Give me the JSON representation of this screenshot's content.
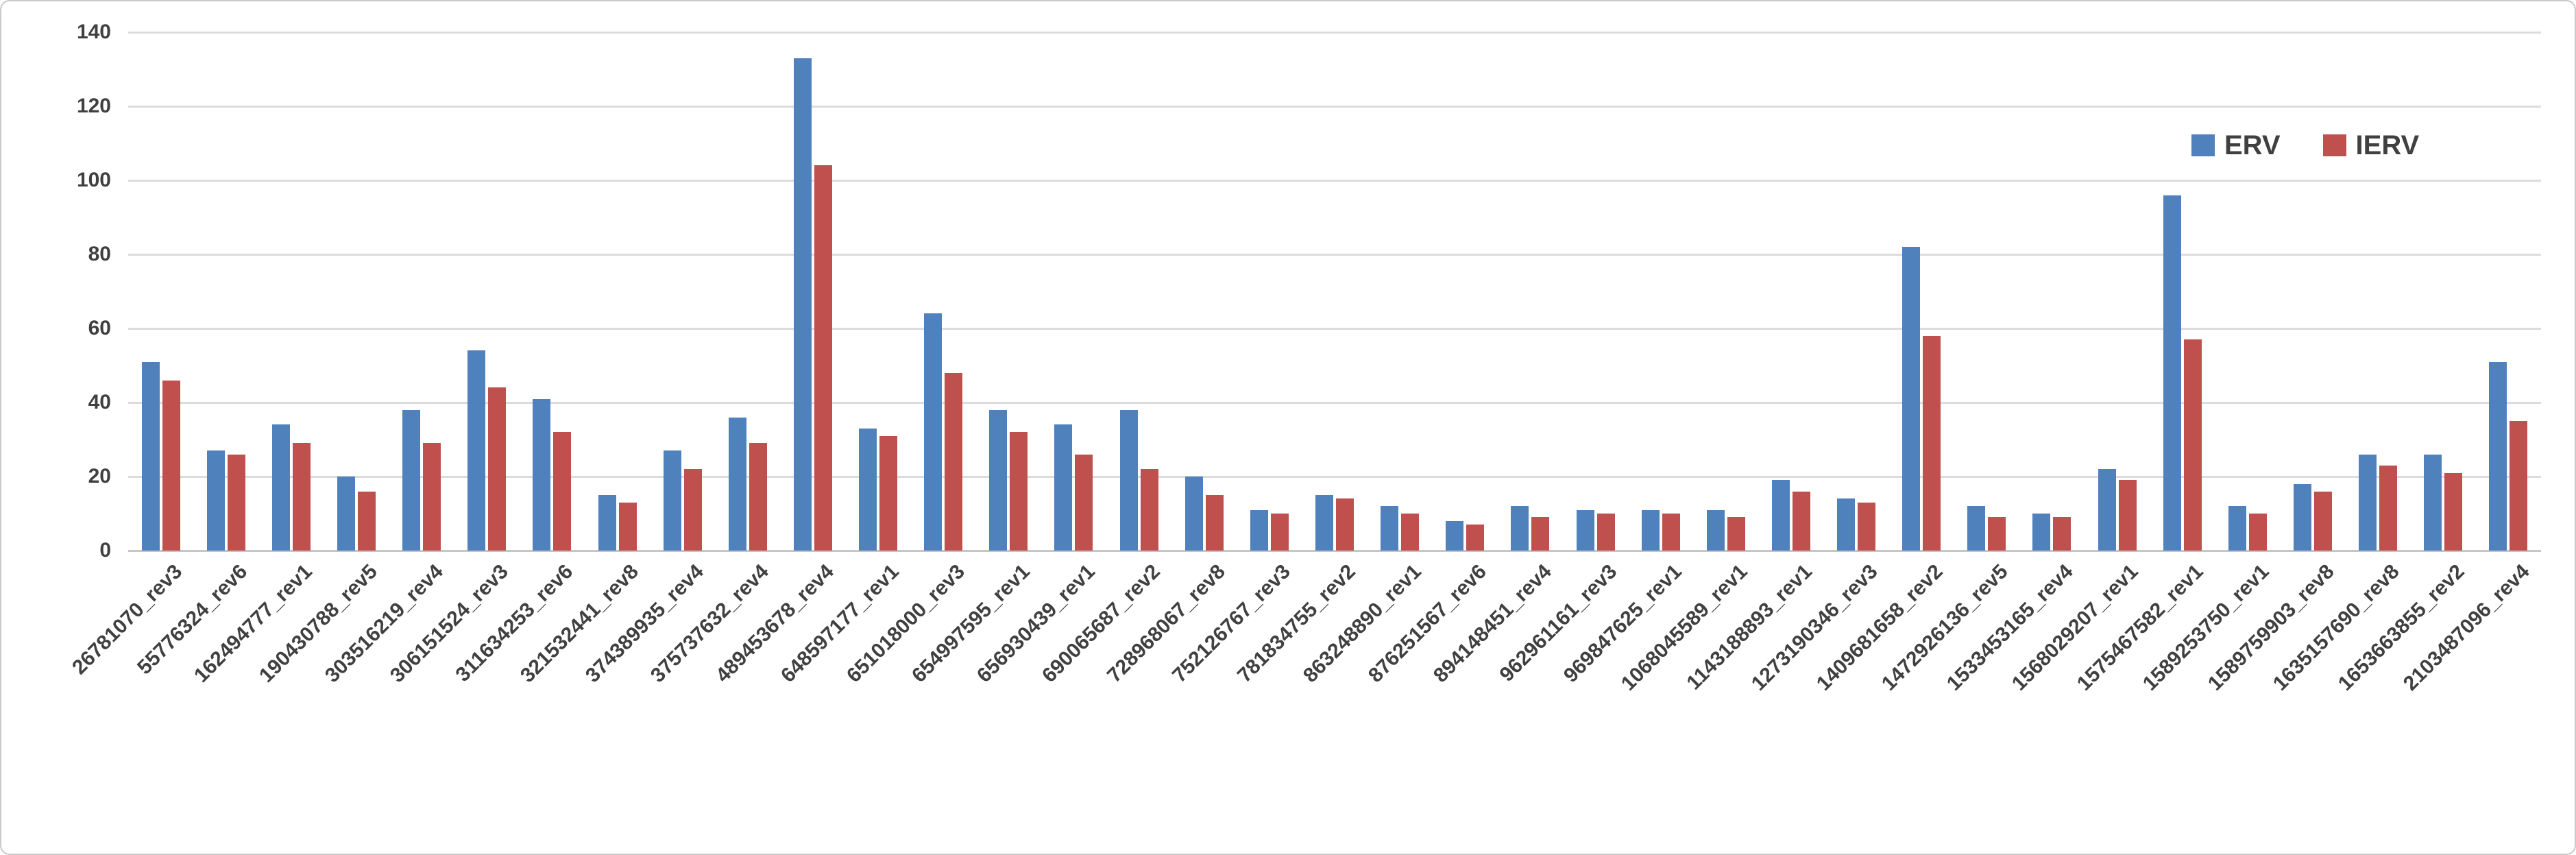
{
  "colors": {
    "erv": "#4F81BD",
    "ierv": "#C0504D",
    "gridline": "#DCDCDC",
    "axis_line": "#C6C6C6",
    "label_text": "#404040",
    "frame_border": "#C9C9C9"
  },
  "legend": {
    "erv_label": "ERV",
    "ierv_label": "IERV"
  },
  "chart_data": {
    "type": "bar",
    "title": "",
    "xlabel": "",
    "ylabel": "",
    "ylim": [
      0,
      140
    ],
    "yticks": [
      0,
      20,
      40,
      60,
      80,
      100,
      120,
      140
    ],
    "grid": true,
    "legend_position": "top-right",
    "categories": [
      "26781070_rev3",
      "55776324_rev6",
      "162494777_rev1",
      "190430788_rev5",
      "303516219_rev4",
      "306151524_rev3",
      "311634253_rev6",
      "321532441_rev8",
      "374389935_rev4",
      "375737632_rev4",
      "489453678_rev4",
      "648597177_rev1",
      "651018000_rev3",
      "654997595_rev1",
      "656930439_rev1",
      "690065687_rev2",
      "728968067_rev8",
      "752126767_rev3",
      "781834755_rev2",
      "863248890_rev1",
      "876251567_rev6",
      "894148451_rev4",
      "962961161_rev3",
      "969847625_rev1",
      "1068045589_rev1",
      "1143188893_rev1",
      "1273190346_rev3",
      "1409681658_rev2",
      "1472926136_rev5",
      "1533453165_rev4",
      "1568029207_rev1",
      "1575467582_rev1",
      "1589253750_rev1",
      "1589759903_rev8",
      "1635157690_rev8",
      "1653663855_rev2",
      "2103487096_rev4"
    ],
    "series": [
      {
        "name": "ERV",
        "color": "#4F81BD",
        "values": [
          51,
          27,
          34,
          20,
          38,
          54,
          41,
          15,
          27,
          36,
          133,
          33,
          64,
          38,
          34,
          38,
          20,
          11,
          15,
          12,
          8,
          12,
          11,
          11,
          11,
          19,
          14,
          82,
          12,
          10,
          22,
          96,
          12,
          18,
          26,
          26,
          51
        ]
      },
      {
        "name": "IERV",
        "color": "#C0504D",
        "values": [
          46,
          26,
          29,
          16,
          29,
          44,
          32,
          13,
          22,
          29,
          104,
          31,
          48,
          32,
          26,
          22,
          15,
          10,
          14,
          10,
          7,
          9,
          10,
          10,
          9,
          16,
          13,
          58,
          9,
          9,
          19,
          57,
          10,
          16,
          23,
          21,
          35
        ]
      }
    ]
  }
}
